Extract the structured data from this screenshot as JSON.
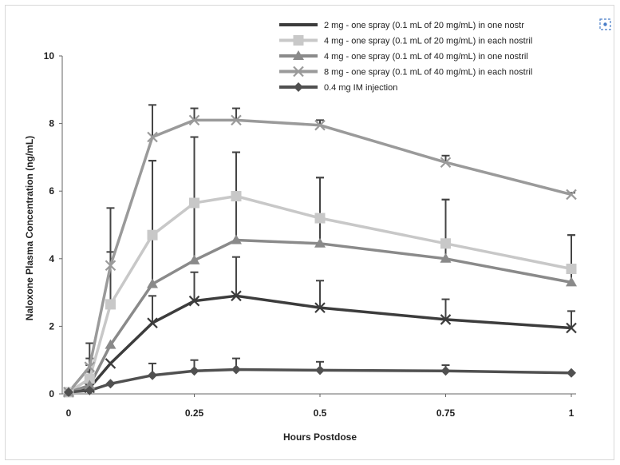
{
  "chart_data": {
    "type": "line",
    "xlabel": "Hours Postdose",
    "ylabel": "Naloxone Plasma Concentration (ng/mL)",
    "xlim": [
      0,
      1
    ],
    "ylim": [
      0,
      10
    ],
    "x_ticks": [
      0,
      0.25,
      0.5,
      0.75,
      1
    ],
    "x_tick_labels": [
      "0",
      "0.25",
      "0.5",
      "0.75",
      "1"
    ],
    "y_ticks": [
      0,
      2,
      4,
      6,
      8,
      10
    ],
    "y_tick_labels": [
      "0",
      "2",
      "4",
      "6",
      "8",
      "10"
    ],
    "legend_position": "top-right",
    "grid": false,
    "series": [
      {
        "name": "2 mg - one spray (0.1 mL of 20 mg/mL) in one nostril",
        "legend_label": "2 mg - one spray (0.1 mL of 20 mg/mL) in one nostr",
        "color": "#3c3c3c",
        "marker": "x",
        "x": [
          0,
          0.0417,
          0.0833,
          0.1667,
          0.25,
          0.3333,
          0.5,
          0.75,
          1
        ],
        "values": [
          0.05,
          0.18,
          0.9,
          2.1,
          2.75,
          2.9,
          2.55,
          2.2,
          1.95
        ],
        "error_upper": [
          null,
          0.65,
          null,
          2.9,
          3.6,
          4.05,
          3.35,
          2.8,
          2.45
        ]
      },
      {
        "name": "4 mg - one spray (0.1 mL of 20 mg/mL) in each nostril",
        "legend_label": "4 mg - one spray (0.1 mL of 20 mg/mL) in each nostril",
        "color": "#c8c8c8",
        "marker": "square",
        "x": [
          0,
          0.0417,
          0.0833,
          0.1667,
          0.25,
          0.3333,
          0.5,
          0.75,
          1
        ],
        "values": [
          0.05,
          0.45,
          2.65,
          4.7,
          5.65,
          5.85,
          5.2,
          4.45,
          3.7
        ],
        "error_upper": [
          null,
          1.05,
          4.2,
          6.9,
          7.6,
          7.15,
          6.4,
          5.75,
          4.7
        ]
      },
      {
        "name": "4 mg - one spray (0.1 mL of 40 mg/mL) in one nostril",
        "legend_label": "4 mg - one spray (0.1 mL of 40 mg/mL) in one nostril",
        "color": "#8a8a8a",
        "marker": "triangle",
        "x": [
          0,
          0.0417,
          0.0833,
          0.1667,
          0.25,
          0.3333,
          0.5,
          0.75,
          1
        ],
        "values": [
          0.05,
          0.25,
          1.45,
          3.25,
          3.95,
          4.55,
          4.45,
          4.0,
          3.3
        ],
        "error_upper": [
          null,
          0.85,
          null,
          6.9,
          7.6,
          7.15,
          6.4,
          5.75,
          4.7
        ]
      },
      {
        "name": "8 mg - one spray (0.1 mL of 40 mg/mL) in each nostril",
        "legend_label": "8 mg - one spray (0.1 mL of 40 mg/mL) in each nostril",
        "color": "#9a9a9a",
        "marker": "x",
        "x": [
          0,
          0.0417,
          0.0833,
          0.1667,
          0.25,
          0.3333,
          0.5,
          0.75,
          1
        ],
        "values": [
          0.05,
          0.8,
          3.8,
          7.6,
          8.1,
          8.1,
          7.95,
          6.85,
          5.9
        ],
        "error_upper": [
          null,
          1.5,
          5.5,
          8.55,
          8.45,
          8.45,
          8.1,
          7.05,
          5.95
        ]
      },
      {
        "name": "0.4 mg IM injection",
        "legend_label": "0.4 mg IM injection",
        "color": "#505050",
        "marker": "diamond",
        "x": [
          0,
          0.0417,
          0.0833,
          0.1667,
          0.25,
          0.3333,
          0.5,
          0.75,
          1
        ],
        "values": [
          0.05,
          0.1,
          0.3,
          0.55,
          0.68,
          0.72,
          0.7,
          0.68,
          0.62
        ],
        "error_upper": [
          null,
          null,
          null,
          0.9,
          1.0,
          1.05,
          0.95,
          0.85,
          null
        ]
      }
    ]
  }
}
